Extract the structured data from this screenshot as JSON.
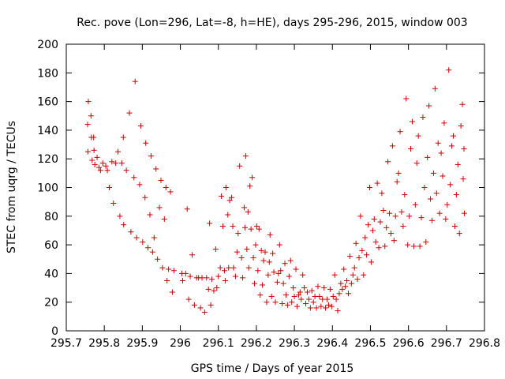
{
  "chart_data": {
    "type": "scatter",
    "title": "Rec. pove (Lon=296, Lat=-8, h=HE), days 295-296, 2015, window 003",
    "xlabel": "GPS time / Days of year 2015",
    "ylabel": "STEC from uqrg / TECUs",
    "xlim": [
      295.7,
      296.8
    ],
    "ylim": [
      0,
      200
    ],
    "xticks": [
      "295.7",
      "295.8",
      "295.9",
      "296",
      "296.1",
      "296.2",
      "296.3",
      "296.4",
      "296.5",
      "296.6",
      "296.7",
      "296.8"
    ],
    "yticks": [
      "0",
      "20",
      "40",
      "60",
      "80",
      "100",
      "120",
      "140",
      "160",
      "180",
      "200"
    ],
    "grid": false,
    "legend": "none",
    "marker": "+",
    "color": "#cc0000",
    "points": [
      [
        295.758,
        160
      ],
      [
        295.756,
        144
      ],
      [
        295.757,
        125
      ],
      [
        295.765,
        150
      ],
      [
        295.766,
        135
      ],
      [
        295.768,
        119
      ],
      [
        295.772,
        135
      ],
      [
        295.773,
        126
      ],
      [
        295.775,
        116
      ],
      [
        295.781,
        121
      ],
      [
        295.786,
        114
      ],
      [
        295.79,
        112
      ],
      [
        295.796,
        117
      ],
      [
        295.804,
        115
      ],
      [
        295.808,
        112
      ],
      [
        295.813,
        100
      ],
      [
        295.82,
        118
      ],
      [
        295.824,
        89
      ],
      [
        295.83,
        117
      ],
      [
        295.836,
        125
      ],
      [
        295.841,
        80
      ],
      [
        295.846,
        117
      ],
      [
        295.85,
        135
      ],
      [
        295.851,
        74
      ],
      [
        295.858,
        112
      ],
      [
        295.866,
        152
      ],
      [
        295.87,
        69
      ],
      [
        295.878,
        107
      ],
      [
        295.881,
        174
      ],
      [
        295.885,
        65
      ],
      [
        295.893,
        102
      ],
      [
        295.896,
        143
      ],
      [
        295.901,
        62
      ],
      [
        295.907,
        93
      ],
      [
        295.909,
        131
      ],
      [
        295.915,
        58
      ],
      [
        295.92,
        81
      ],
      [
        295.923,
        122
      ],
      [
        295.927,
        55
      ],
      [
        295.931,
        65
      ],
      [
        295.936,
        113
      ],
      [
        295.94,
        50
      ],
      [
        295.945,
        86
      ],
      [
        295.949,
        105
      ],
      [
        295.953,
        44
      ],
      [
        295.958,
        78
      ],
      [
        295.962,
        100
      ],
      [
        295.965,
        35
      ],
      [
        295.969,
        43
      ],
      [
        295.974,
        97
      ],
      [
        295.979,
        27
      ],
      [
        295.983,
        42
      ],
      [
        296.004,
        40
      ],
      [
        296.006,
        35
      ],
      [
        296.014,
        40
      ],
      [
        296.018,
        85
      ],
      [
        296.022,
        22
      ],
      [
        296.026,
        38
      ],
      [
        296.031,
        53
      ],
      [
        296.037,
        18
      ],
      [
        296.043,
        37
      ],
      [
        296.048,
        37
      ],
      [
        296.053,
        16
      ],
      [
        296.057,
        37
      ],
      [
        296.064,
        13
      ],
      [
        296.069,
        37
      ],
      [
        296.074,
        29
      ],
      [
        296.077,
        75
      ],
      [
        296.08,
        18
      ],
      [
        296.083,
        36
      ],
      [
        296.088,
        28
      ],
      [
        296.093,
        57
      ],
      [
        296.096,
        30
      ],
      [
        296.1,
        38
      ],
      [
        296.105,
        44
      ],
      [
        296.108,
        94
      ],
      [
        296.112,
        73
      ],
      [
        296.116,
        42
      ],
      [
        296.118,
        35
      ],
      [
        296.12,
        100
      ],
      [
        296.125,
        81
      ],
      [
        296.127,
        44
      ],
      [
        296.13,
        91
      ],
      [
        296.135,
        93
      ],
      [
        296.138,
        73
      ],
      [
        296.14,
        44
      ],
      [
        296.145,
        38
      ],
      [
        296.149,
        55
      ],
      [
        296.152,
        68
      ],
      [
        296.156,
        115
      ],
      [
        296.161,
        51
      ],
      [
        296.164,
        37
      ],
      [
        296.168,
        86
      ],
      [
        296.17,
        72
      ],
      [
        296.172,
        122
      ],
      [
        296.175,
        57
      ],
      [
        296.178,
        83
      ],
      [
        296.18,
        44
      ],
      [
        296.183,
        101
      ],
      [
        296.186,
        71
      ],
      [
        296.189,
        107
      ],
      [
        296.192,
        51
      ],
      [
        296.195,
        33
      ],
      [
        296.198,
        60
      ],
      [
        296.201,
        73
      ],
      [
        296.204,
        42
      ],
      [
        296.207,
        71
      ],
      [
        296.21,
        25
      ],
      [
        296.213,
        56
      ],
      [
        296.216,
        32
      ],
      [
        296.219,
        49
      ],
      [
        296.223,
        55
      ],
      [
        296.227,
        20
      ],
      [
        296.231,
        39
      ],
      [
        296.234,
        48
      ],
      [
        296.236,
        67
      ],
      [
        296.24,
        24
      ],
      [
        296.243,
        54
      ],
      [
        296.246,
        41
      ],
      [
        296.25,
        20
      ],
      [
        296.255,
        34
      ],
      [
        296.258,
        40
      ],
      [
        296.261,
        60
      ],
      [
        296.264,
        42
      ],
      [
        296.268,
        19
      ],
      [
        296.271,
        33
      ],
      [
        296.275,
        47
      ],
      [
        296.278,
        25
      ],
      [
        296.282,
        18
      ],
      [
        296.286,
        38
      ],
      [
        296.29,
        49
      ],
      [
        296.293,
        20
      ],
      [
        296.297,
        30
      ],
      [
        296.3,
        24
      ],
      [
        296.304,
        43
      ],
      [
        296.307,
        17
      ],
      [
        296.311,
        25
      ],
      [
        296.315,
        27
      ],
      [
        296.318,
        22
      ],
      [
        296.322,
        39
      ],
      [
        296.326,
        30
      ],
      [
        296.33,
        19
      ],
      [
        296.334,
        27
      ],
      [
        296.338,
        22
      ],
      [
        296.342,
        16
      ],
      [
        296.346,
        28
      ],
      [
        296.35,
        20
      ],
      [
        296.354,
        24
      ],
      [
        296.358,
        16
      ],
      [
        296.362,
        31
      ],
      [
        296.366,
        24
      ],
      [
        296.37,
        17
      ],
      [
        296.374,
        22
      ],
      [
        296.378,
        30
      ],
      [
        296.382,
        16
      ],
      [
        296.386,
        22
      ],
      [
        296.39,
        18
      ],
      [
        296.394,
        29
      ],
      [
        296.398,
        17
      ],
      [
        296.402,
        24
      ],
      [
        296.406,
        39
      ],
      [
        296.41,
        22
      ],
      [
        296.414,
        14
      ],
      [
        296.418,
        26
      ],
      [
        296.422,
        33
      ],
      [
        296.426,
        29
      ],
      [
        296.43,
        43
      ],
      [
        296.434,
        31
      ],
      [
        296.438,
        35
      ],
      [
        296.442,
        26
      ],
      [
        296.446,
        52
      ],
      [
        296.45,
        33
      ],
      [
        296.454,
        39
      ],
      [
        296.458,
        44
      ],
      [
        296.462,
        61
      ],
      [
        296.466,
        36
      ],
      [
        296.47,
        51
      ],
      [
        296.474,
        80
      ],
      [
        296.478,
        56
      ],
      [
        296.482,
        39
      ],
      [
        296.486,
        65
      ],
      [
        296.49,
        53
      ],
      [
        296.494,
        74
      ],
      [
        296.498,
        100
      ],
      [
        296.502,
        48
      ],
      [
        296.506,
        70
      ],
      [
        296.51,
        78
      ],
      [
        296.514,
        62
      ],
      [
        296.518,
        103
      ],
      [
        296.522,
        58
      ],
      [
        296.526,
        76
      ],
      [
        296.53,
        96
      ],
      [
        296.534,
        84
      ],
      [
        296.538,
        59
      ],
      [
        296.542,
        72
      ],
      [
        296.546,
        118
      ],
      [
        296.55,
        82
      ],
      [
        296.554,
        68
      ],
      [
        296.558,
        129
      ],
      [
        296.562,
        63
      ],
      [
        296.566,
        80
      ],
      [
        296.57,
        104
      ],
      [
        296.574,
        110
      ],
      [
        296.578,
        139
      ],
      [
        296.582,
        83
      ],
      [
        296.586,
        73
      ],
      [
        296.59,
        95
      ],
      [
        296.594,
        162
      ],
      [
        296.598,
        60
      ],
      [
        296.602,
        80
      ],
      [
        296.606,
        127
      ],
      [
        296.61,
        146
      ],
      [
        296.614,
        59
      ],
      [
        296.618,
        88
      ],
      [
        296.622,
        117
      ],
      [
        296.626,
        136
      ],
      [
        296.63,
        59
      ],
      [
        296.634,
        79
      ],
      [
        296.638,
        149
      ],
      [
        296.642,
        100
      ],
      [
        296.646,
        62
      ],
      [
        296.65,
        121
      ],
      [
        296.654,
        157
      ],
      [
        296.658,
        92
      ],
      [
        296.662,
        77
      ],
      [
        296.666,
        110
      ],
      [
        296.67,
        169
      ],
      [
        296.674,
        96
      ],
      [
        296.678,
        131
      ],
      [
        296.682,
        82
      ],
      [
        296.686,
        124
      ],
      [
        296.69,
        108
      ],
      [
        296.694,
        145
      ],
      [
        296.698,
        78
      ],
      [
        296.702,
        88
      ],
      [
        296.706,
        182
      ],
      [
        296.71,
        102
      ],
      [
        296.714,
        129
      ],
      [
        296.718,
        136
      ],
      [
        296.722,
        73
      ],
      [
        296.726,
        95
      ],
      [
        296.73,
        116
      ],
      [
        296.734,
        68
      ],
      [
        296.738,
        143
      ],
      [
        296.742,
        158
      ],
      [
        296.744,
        106
      ],
      [
        296.746,
        127
      ],
      [
        296.747,
        82
      ]
    ]
  }
}
